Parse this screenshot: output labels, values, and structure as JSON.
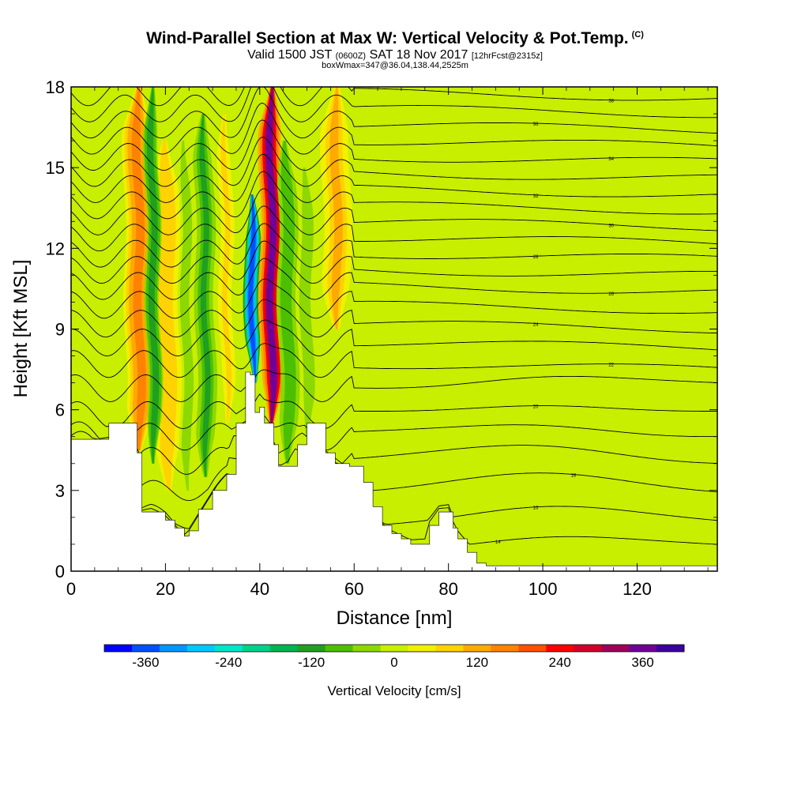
{
  "header": {
    "title": "Wind-Parallel Section at Max W: Vertical Velocity & Pot.Temp.",
    "copyright": "(C)",
    "valid_prefix": "Valid 1500 JST",
    "valid_zulu": "(0600Z)",
    "valid_date": "SAT 18 Nov 2017",
    "forecast": "[12hrFcst@2315z]",
    "boxwmax": "boxWmax=347@36.04,138.44,2525m"
  },
  "chart_data": {
    "type": "heatmap",
    "xlabel": "Distance [nm]",
    "ylabel": "Height [Kft MSL]",
    "xlim": [
      0,
      137
    ],
    "ylim": [
      0,
      18
    ],
    "x_ticks": [
      0,
      20,
      40,
      60,
      80,
      100,
      120
    ],
    "y_ticks": [
      0,
      3,
      6,
      9,
      12,
      15,
      18
    ],
    "colorbar": {
      "label": "Vertical Velocity [cm/s]",
      "ticks": [
        "-360",
        "-240",
        "-120",
        "0",
        "120",
        "240",
        "360"
      ],
      "min": -420,
      "max": 420,
      "step": 40,
      "colors": [
        "#0000ff",
        "#0050ff",
        "#0096ff",
        "#00c8ff",
        "#00e6c8",
        "#00d28c",
        "#00b450",
        "#20a020",
        "#4cc000",
        "#8cd800",
        "#c8ee00",
        "#f0f000",
        "#ffd200",
        "#ffaa00",
        "#ff8200",
        "#ff5000",
        "#ff0000",
        "#d20028",
        "#a0005a",
        "#700096",
        "#3c00a0"
      ]
    },
    "terrain_kft": [
      [
        0,
        4.9
      ],
      [
        6,
        4.9
      ],
      [
        8,
        5.5
      ],
      [
        12,
        5.5
      ],
      [
        14,
        4.4
      ],
      [
        15,
        2.2
      ],
      [
        17,
        2.2
      ],
      [
        20,
        1.9
      ],
      [
        22,
        1.6
      ],
      [
        24,
        1.3
      ],
      [
        25,
        1.5
      ],
      [
        27,
        2.3
      ],
      [
        30,
        3.0
      ],
      [
        33,
        3.6
      ],
      [
        35,
        5.5
      ],
      [
        37,
        7.4
      ],
      [
        38,
        7.3
      ],
      [
        39,
        5.9
      ],
      [
        40,
        6.1
      ],
      [
        41,
        5.5
      ],
      [
        43,
        4.7
      ],
      [
        44,
        3.9
      ],
      [
        46,
        3.9
      ],
      [
        48,
        4.7
      ],
      [
        50,
        5.5
      ],
      [
        52,
        5.5
      ],
      [
        54,
        4.4
      ],
      [
        56,
        4.0
      ],
      [
        59,
        3.9
      ],
      [
        62,
        3.3
      ],
      [
        64,
        2.4
      ],
      [
        66,
        1.7
      ],
      [
        68,
        1.4
      ],
      [
        70,
        1.2
      ],
      [
        72,
        1.0
      ],
      [
        75,
        1.0
      ],
      [
        76,
        1.7
      ],
      [
        78,
        2.2
      ],
      [
        80,
        2.2
      ],
      [
        81,
        1.6
      ],
      [
        82,
        1.2
      ],
      [
        84,
        0.7
      ],
      [
        86,
        0.3
      ],
      [
        88,
        0.2
      ],
      [
        137,
        0.2
      ]
    ],
    "updraft_bands": [
      {
        "x": 14.5,
        "w": 3.0,
        "top_kft": 18,
        "bottom_kft": 4.5,
        "value": 150
      },
      {
        "x": 20.5,
        "w": 2.5,
        "top_kft": 16,
        "bottom_kft": 3.0,
        "value": 90
      },
      {
        "x": 33.0,
        "w": 1.8,
        "top_kft": 17,
        "bottom_kft": 5.5,
        "value": 60
      },
      {
        "x": 42.5,
        "w": 2.4,
        "top_kft": 18,
        "bottom_kft": 5.5,
        "value": 347
      },
      {
        "x": 56.5,
        "w": 3.0,
        "top_kft": 18,
        "bottom_kft": 9.0,
        "value": 110
      }
    ],
    "downdraft_bands": [
      {
        "x": 38.5,
        "w": 1.6,
        "top_kft": 14,
        "bottom_kft": 7.0,
        "value": -380
      },
      {
        "x": 17.5,
        "w": 1.5,
        "top_kft": 18,
        "bottom_kft": 4.0,
        "value": -130
      },
      {
        "x": 28.5,
        "w": 2.0,
        "top_kft": 17,
        "bottom_kft": 3.5,
        "value": -110
      },
      {
        "x": 24.5,
        "w": 1.2,
        "top_kft": 16,
        "bottom_kft": 3.0,
        "value": -60
      },
      {
        "x": 46.0,
        "w": 2.0,
        "top_kft": 16,
        "bottom_kft": 4.0,
        "value": -100
      },
      {
        "x": 50.0,
        "w": 1.5,
        "top_kft": 15,
        "bottom_kft": 5.0,
        "value": -60
      }
    ],
    "theta_contours": [
      {
        "base_kft": 0.8,
        "label": "14"
      },
      {
        "base_kft": 1.8,
        "label": "16"
      },
      {
        "base_kft": 3.0,
        "label": "18"
      },
      {
        "base_kft": 4.1,
        "label": ""
      },
      {
        "base_kft": 5.0,
        "label": ""
      },
      {
        "base_kft": 5.8,
        "label": "20"
      },
      {
        "base_kft": 6.8,
        "label": ""
      },
      {
        "base_kft": 7.7,
        "label": "22"
      },
      {
        "base_kft": 8.5,
        "label": ""
      },
      {
        "base_kft": 9.2,
        "label": "24"
      },
      {
        "base_kft": 9.9,
        "label": ""
      },
      {
        "base_kft": 10.6,
        "label": "26"
      },
      {
        "base_kft": 11.2,
        "label": ""
      },
      {
        "base_kft": 11.8,
        "label": "28"
      },
      {
        "base_kft": 12.4,
        "label": ""
      },
      {
        "base_kft": 13.0,
        "label": "30"
      },
      {
        "base_kft": 13.6,
        "label": ""
      },
      {
        "base_kft": 14.2,
        "label": "32"
      },
      {
        "base_kft": 14.8,
        "label": ""
      },
      {
        "base_kft": 15.4,
        "label": "34"
      },
      {
        "base_kft": 16.0,
        "label": ""
      },
      {
        "base_kft": 16.6,
        "label": "36"
      },
      {
        "base_kft": 17.2,
        "label": ""
      },
      {
        "base_kft": 17.8,
        "label": "38"
      }
    ]
  }
}
